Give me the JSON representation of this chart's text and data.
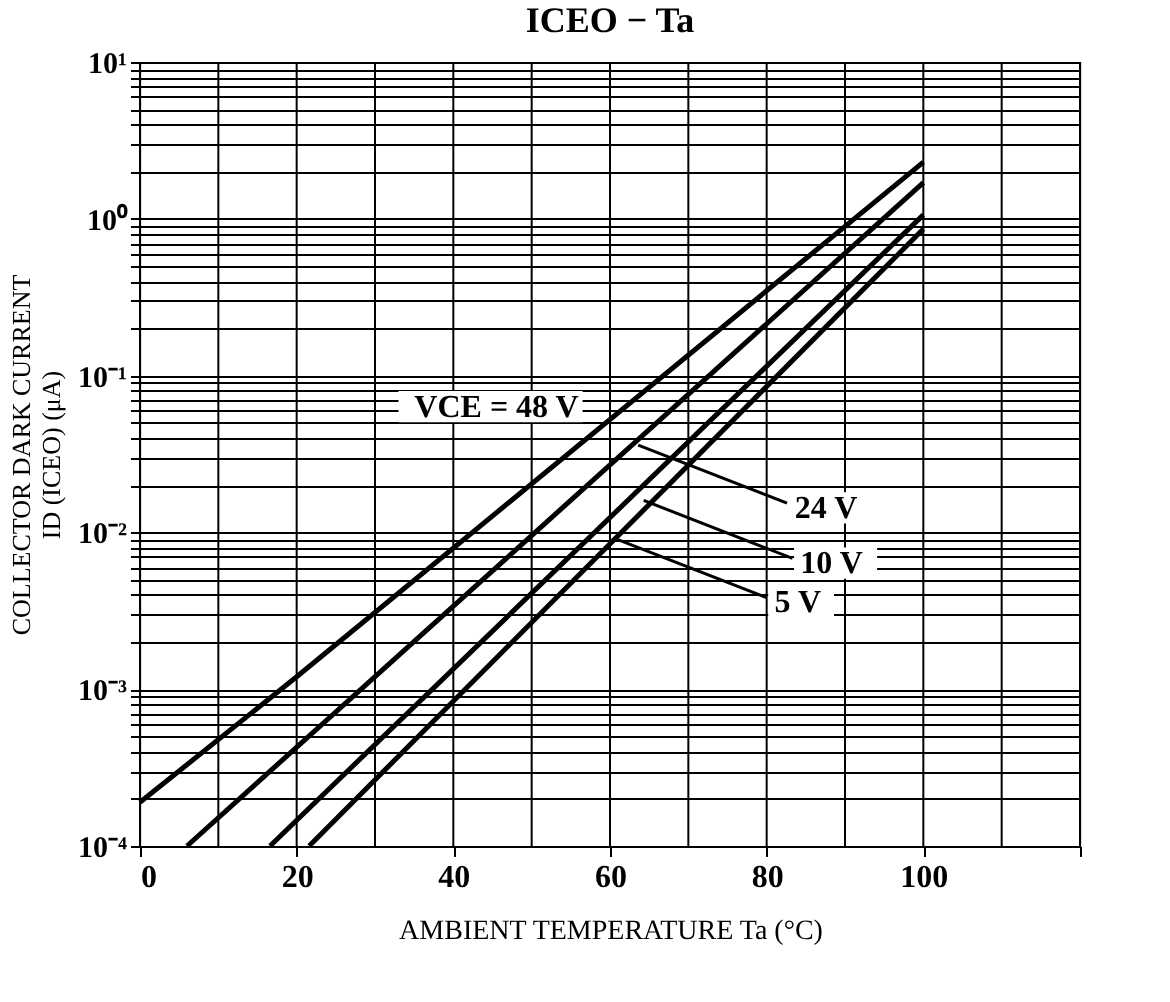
{
  "chart_data": {
    "type": "line",
    "title": "ICEO − Ta",
    "xlabel": "AMBIENT TEMPERATURE   Ta   (°C)",
    "ylabel": "COLLECTOR DARK CURRENT\nID (ICEO)  (μA)",
    "log": "y",
    "grid": true,
    "line_style": "solid",
    "marker": "none",
    "xlim": [
      0,
      120
    ],
    "xticks": [
      0,
      {
        "value": 10,
        "label": null
      },
      20,
      {
        "value": 30,
        "label": null
      },
      40,
      {
        "value": 50,
        "label": null
      },
      60,
      {
        "value": 70,
        "label": null
      },
      80,
      {
        "value": 90,
        "label": null
      },
      100,
      {
        "value": 110,
        "label": null
      },
      {
        "value": 120,
        "label": null
      }
    ],
    "ylim": [
      0.0001,
      10
    ],
    "yticks": [
      {
        "value": 0.0001,
        "label": "10⁻⁴"
      },
      {
        "value": 0.0002,
        "label": null
      },
      {
        "value": 0.0003,
        "label": null
      },
      {
        "value": 0.0004,
        "label": null
      },
      {
        "value": 0.0005,
        "label": null
      },
      {
        "value": 0.0006,
        "label": null
      },
      {
        "value": 0.0007,
        "label": null
      },
      {
        "value": 0.0008,
        "label": null
      },
      {
        "value": 0.0009,
        "label": null
      },
      {
        "value": 0.001,
        "label": "10⁻³"
      },
      {
        "value": 0.002,
        "label": null
      },
      {
        "value": 0.003,
        "label": null
      },
      {
        "value": 0.004,
        "label": null
      },
      {
        "value": 0.005,
        "label": null
      },
      {
        "value": 0.006,
        "label": null
      },
      {
        "value": 0.007,
        "label": null
      },
      {
        "value": 0.008,
        "label": null
      },
      {
        "value": 0.009,
        "label": null
      },
      {
        "value": 0.01,
        "label": "10⁻²"
      },
      {
        "value": 0.02,
        "label": null
      },
      {
        "value": 0.03,
        "label": null
      },
      {
        "value": 0.04,
        "label": null
      },
      {
        "value": 0.05,
        "label": null
      },
      {
        "value": 0.06,
        "label": null
      },
      {
        "value": 0.07,
        "label": null
      },
      {
        "value": 0.08,
        "label": null
      },
      {
        "value": 0.09,
        "label": null
      },
      {
        "value": 0.1,
        "label": "10⁻¹"
      },
      {
        "value": 0.2,
        "label": null
      },
      {
        "value": 0.3,
        "label": null
      },
      {
        "value": 0.4,
        "label": null
      },
      {
        "value": 0.5,
        "label": null
      },
      {
        "value": 0.6,
        "label": null
      },
      {
        "value": 0.7,
        "label": null
      },
      {
        "value": 0.8,
        "label": null
      },
      {
        "value": 0.9,
        "label": null
      },
      {
        "value": 1,
        "label": "10⁰"
      },
      {
        "value": 2,
        "label": null
      },
      {
        "value": 3,
        "label": null
      },
      {
        "value": 4,
        "label": null
      },
      {
        "value": 5,
        "label": null
      },
      {
        "value": 6,
        "label": null
      },
      {
        "value": 7,
        "label": null
      },
      {
        "value": 8,
        "label": null
      },
      {
        "value": 9,
        "label": null
      },
      {
        "value": 10,
        "label": "10¹"
      }
    ],
    "series": [
      {
        "color": "#000000",
        "x": [
          0,
          20,
          100
        ],
        "values": [
          0.00019,
          0.0012,
          2.3
        ]
      },
      {
        "color": "#000000",
        "x": [
          6,
          100
        ],
        "values": [
          0.0001,
          1.7
        ]
      },
      {
        "color": "#000000",
        "x": [
          16.6,
          100
        ],
        "values": [
          0.0001,
          1.06
        ]
      },
      {
        "color": "#000000",
        "x": [
          21.6,
          100
        ],
        "values": [
          0.0001,
          0.86
        ]
      }
    ],
    "annotations": [
      {
        "text": "VCE = 48 V",
        "x": 57,
        "y": 0.04
      },
      {
        "text": "24 V",
        "x": 63.6,
        "y": 0.036
      },
      {
        "text": "10 V",
        "x": 64.3,
        "y": 0.016
      },
      {
        "text": "5 V",
        "x": 61,
        "y": 0.009
      }
    ]
  }
}
